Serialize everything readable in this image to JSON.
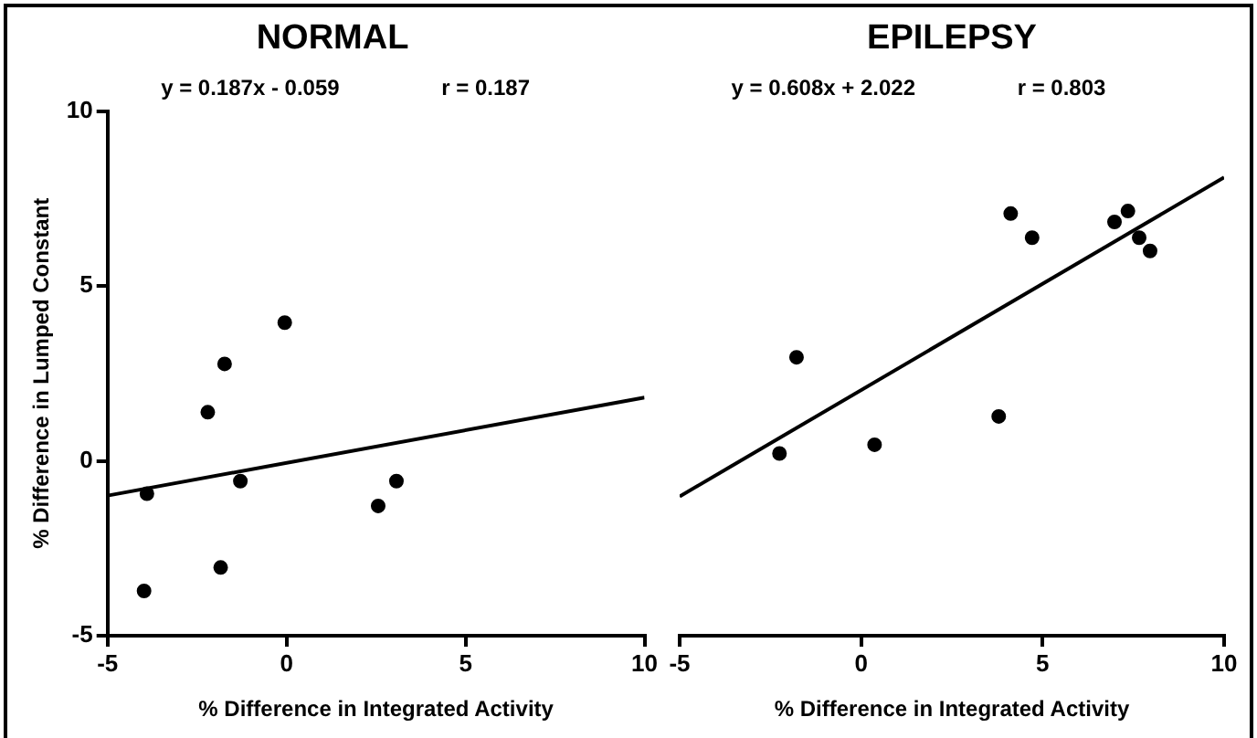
{
  "chart_data": [
    {
      "type": "scatter",
      "title": "NORMAL",
      "xlabel": "% Difference in Integrated Activity",
      "ylabel": "% Difference in Lumped Constant",
      "annotations": [
        "y = 0.187x - 0.059",
        "r = 0.187"
      ],
      "xlim": [
        -5,
        10
      ],
      "xticks": [
        -5,
        0,
        5,
        10
      ],
      "ylim": [
        -5,
        10
      ],
      "yticks": [
        -5,
        0,
        5,
        10
      ],
      "grid": false,
      "legend": false,
      "marker": "circle",
      "series": [
        {
          "color": "#000000",
          "x": [
            -3.9,
            -2.2,
            -1.73,
            -0.05,
            -1.29,
            2.56,
            3.07,
            -1.84,
            -3.98
          ],
          "values": [
            -0.94,
            1.39,
            2.77,
            3.95,
            -0.58,
            -1.29,
            -0.58,
            -3.05,
            -3.72
          ]
        },
        {
          "type": "line",
          "marker": "none",
          "color": "#000000",
          "x": [
            -5,
            10
          ],
          "values": [
            -0.994,
            1.811
          ]
        }
      ]
    },
    {
      "type": "scatter",
      "title": "EPILEPSY",
      "xlabel": "% Difference in Integrated Activity",
      "annotations": [
        "y = 0.608x + 2.022",
        "r = 0.803"
      ],
      "xlim": [
        -5,
        10
      ],
      "xticks": [
        -5,
        0,
        5,
        10
      ],
      "ylim": [
        -5,
        10
      ],
      "tick_labels": "x",
      "grid": false,
      "legend": false,
      "marker": "circle",
      "series": [
        {
          "color": "#000000",
          "x": [
            -2.25,
            -1.78,
            0.37,
            3.79,
            4.12,
            4.71,
            6.98,
            7.35,
            7.66,
            7.96
          ],
          "values": [
            0.21,
            2.96,
            0.46,
            1.27,
            7.07,
            6.38,
            6.83,
            7.14,
            6.38,
            6.0
          ]
        },
        {
          "type": "line",
          "marker": "none",
          "color": "#000000",
          "x": [
            -5,
            10
          ],
          "values": [
            -1.018,
            8.102
          ]
        }
      ]
    }
  ]
}
